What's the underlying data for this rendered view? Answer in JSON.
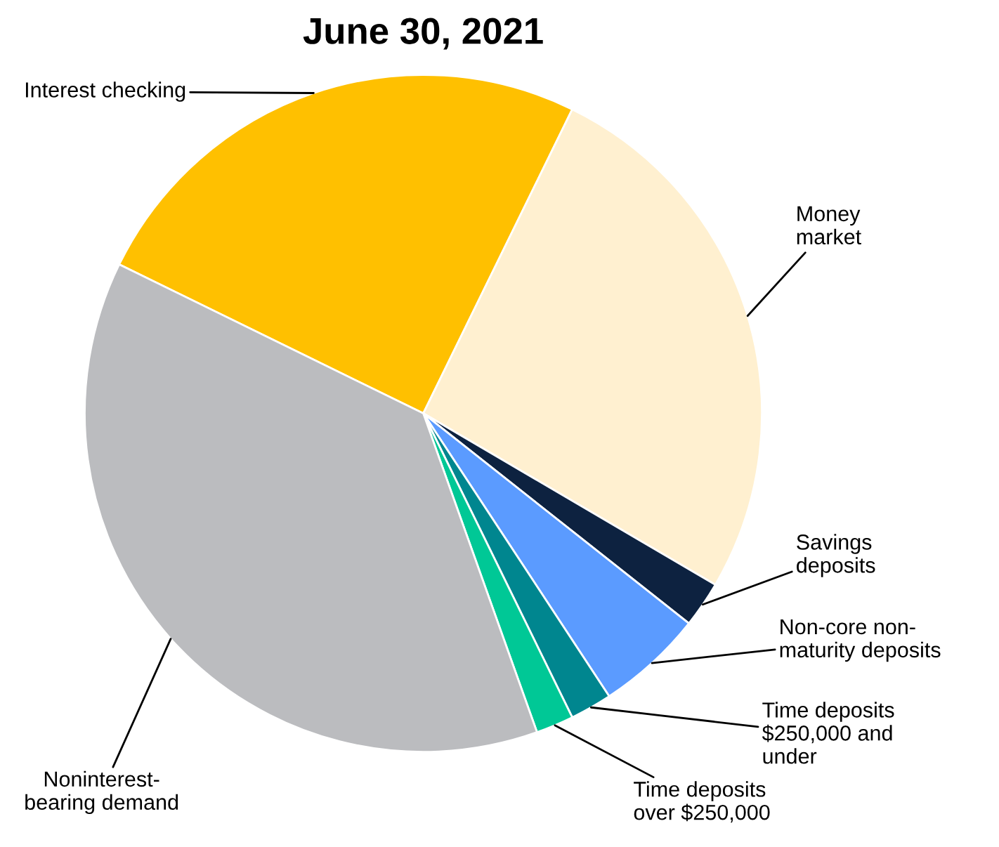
{
  "chart_data": {
    "type": "pie",
    "title": "June 30, 2021",
    "categories": [
      "Interest checking",
      "Money\nmarket",
      "Savings\ndeposits",
      "Non-core non-\nmaturity deposits",
      "Time deposits\n$250,000 and\nunder",
      "Time deposits\nover $250,000",
      "Noninterest-\nbearing demand"
    ],
    "values": [
      25.0,
      26.2,
      2.2,
      5.1,
      2.0,
      1.8,
      37.7
    ],
    "colors": [
      "#ffc000",
      "#fff0d0",
      "#0d2240",
      "#5b9bff",
      "#00868f",
      "#00c896",
      "#bbbcbf"
    ],
    "legend": false
  }
}
